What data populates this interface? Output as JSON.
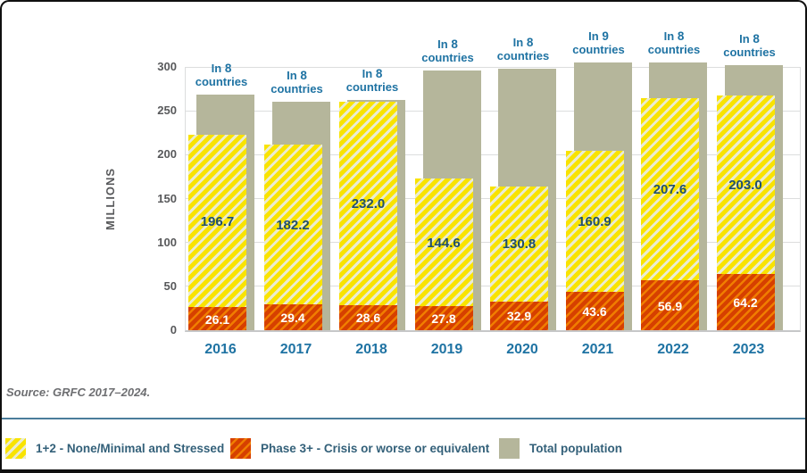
{
  "page": {
    "source_note": "Source: GRFC 2017–2024."
  },
  "chart_data": {
    "type": "bar",
    "stacked": true,
    "title": "",
    "xlabel": "",
    "ylabel": "MILLIONS",
    "ylim": [
      0,
      300
    ],
    "yticks": [
      0,
      50,
      100,
      150,
      200,
      250,
      300
    ],
    "grid": "horizontal",
    "legend_position": "bottom",
    "categories": [
      "2016",
      "2017",
      "2018",
      "2019",
      "2020",
      "2021",
      "2022",
      "2023"
    ],
    "series": [
      {
        "name": "1+2 - None/Minimal and Stressed",
        "role": "phase12",
        "values": [
          196.7,
          182.2,
          232.0,
          144.6,
          130.8,
          160.9,
          207.6,
          203.0
        ],
        "data_labels": true
      },
      {
        "name": "Phase 3+ - Crisis or worse or equivalent",
        "role": "phase3",
        "values": [
          26.1,
          29.4,
          28.6,
          27.8,
          32.9,
          43.6,
          56.9,
          64.2
        ],
        "data_labels": true
      },
      {
        "name": "Total population",
        "role": "total",
        "values": [
          268,
          260,
          262,
          296,
          298,
          305,
          305,
          302
        ],
        "estimated_from_bar_heights": true,
        "data_labels": false
      }
    ],
    "annotations": {
      "prefix": "In",
      "suffix": "countries",
      "counts": [
        "8",
        "8",
        "8",
        "8",
        "8",
        "9",
        "8",
        "8"
      ]
    }
  },
  "colors": {
    "phase12_stripe": "#f9e300",
    "phase12_bg": "#eaecd2",
    "phase3_stripe": "#f07d00",
    "phase3_bg": "#d64000",
    "total_population": "#b5b69b",
    "year_label": "#1f73a3",
    "annotation": "#1f73a3",
    "value_on_yellow": "#21506c",
    "value_on_orange": "#ffffff",
    "axis_text": "#58595b",
    "axis_line": "#c6c7c8",
    "gridline": "#dcdddd",
    "separator_line": "#4a7d9b",
    "source_text": "#6d6e71",
    "legend_text": "#336079"
  }
}
